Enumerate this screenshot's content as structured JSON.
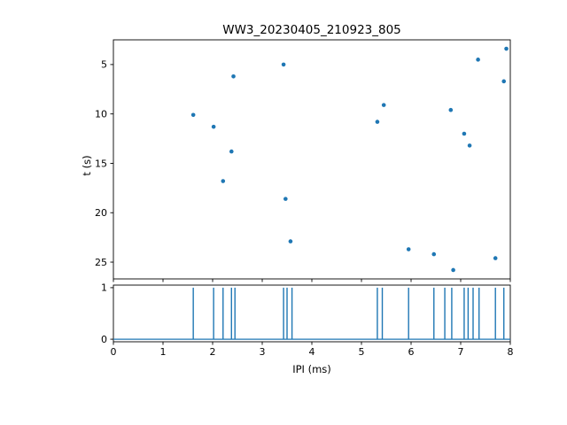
{
  "figure": {
    "title": "WW3_20230405_210923_805",
    "accent_color": "#1f77b4",
    "axes_color": "#000000",
    "background": "#ffffff"
  },
  "chart_data": [
    {
      "type": "scatter",
      "title": "WW3_20230405_210923_805",
      "xlabel": "",
      "ylabel": "t (s)",
      "xlim": [
        0,
        8
      ],
      "ylim": [
        26.7,
        2.5
      ],
      "y_inverted": true,
      "grid": false,
      "legend": "none",
      "xticks": [
        0,
        1,
        2,
        3,
        4,
        5,
        6,
        7,
        8
      ],
      "xtick_labels_visible": false,
      "yticks": [
        5,
        10,
        15,
        20,
        25
      ],
      "marker_color": "#1f77b4",
      "x": [
        1.61,
        2.02,
        2.21,
        2.38,
        2.42,
        3.43,
        3.47,
        3.57,
        5.32,
        5.45,
        5.95,
        6.46,
        6.8,
        6.85,
        7.07,
        7.18,
        7.35,
        7.7,
        7.87,
        7.92
      ],
      "y": [
        10.1,
        11.3,
        16.8,
        13.8,
        6.2,
        5.0,
        18.6,
        22.9,
        10.8,
        9.1,
        23.7,
        24.2,
        9.6,
        25.8,
        12.0,
        13.2,
        4.5,
        24.6,
        6.7,
        3.4
      ]
    },
    {
      "type": "line",
      "subtype": "pulse-train",
      "title": "",
      "xlabel": "IPI (ms)",
      "ylabel": "",
      "xlim": [
        0,
        8
      ],
      "ylim": [
        -0.05,
        1.05
      ],
      "grid": false,
      "legend": "none",
      "xticks": [
        0,
        1,
        2,
        3,
        4,
        5,
        6,
        7,
        8
      ],
      "xtick_labels_visible": true,
      "yticks": [
        0,
        1
      ],
      "line_color": "#1f77b4",
      "baseline": 0,
      "pulse_height": 1,
      "pulse_x": [
        1.61,
        2.02,
        2.21,
        2.38,
        2.45,
        3.43,
        3.5,
        3.6,
        5.32,
        5.42,
        5.95,
        6.46,
        6.68,
        6.82,
        7.07,
        7.15,
        7.25,
        7.37,
        7.7,
        7.87
      ]
    }
  ]
}
